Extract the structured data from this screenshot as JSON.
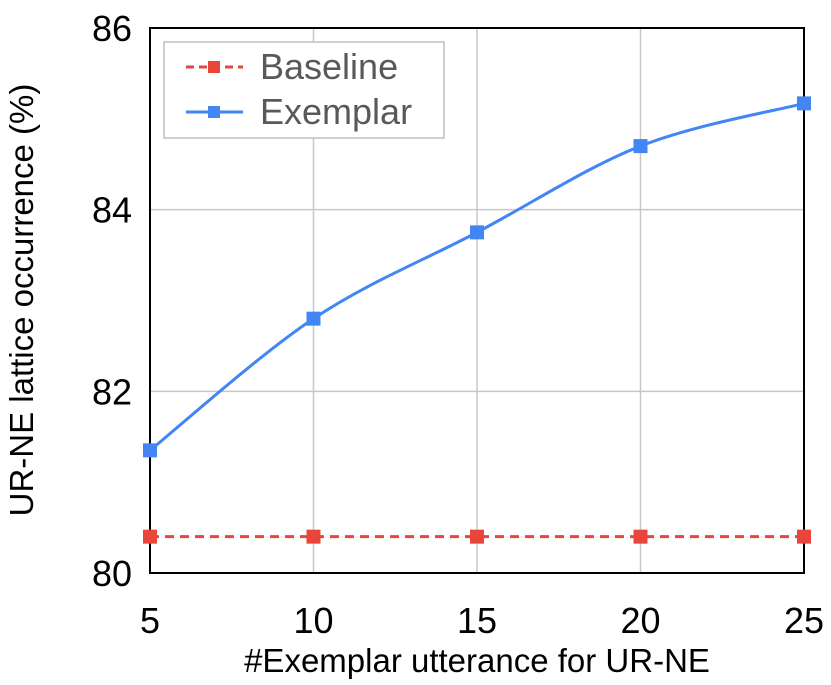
{
  "chart_data": {
    "type": "line",
    "title": "",
    "xlabel": "#Exemplar utterance for UR-NE",
    "ylabel": "UR-NE lattice occurrence (%)",
    "x": [
      5,
      10,
      15,
      20,
      25
    ],
    "xlim": [
      5,
      25
    ],
    "ylim": [
      80,
      86
    ],
    "xticks": [
      "5",
      "10",
      "15",
      "20",
      "25"
    ],
    "yticks": [
      "80",
      "82",
      "84",
      "86"
    ],
    "grid": true,
    "legend_position": "top-left",
    "series": [
      {
        "name": "Baseline",
        "values": [
          80.4,
          80.4,
          80.4,
          80.4,
          80.4
        ],
        "color": "#e8463a",
        "line_style": "dashed",
        "marker": "square"
      },
      {
        "name": "Exemplar",
        "values": [
          81.35,
          82.8,
          83.75,
          84.7,
          85.17
        ],
        "color": "#4285f4",
        "line_style": "solid-smooth",
        "marker": "square"
      }
    ]
  }
}
